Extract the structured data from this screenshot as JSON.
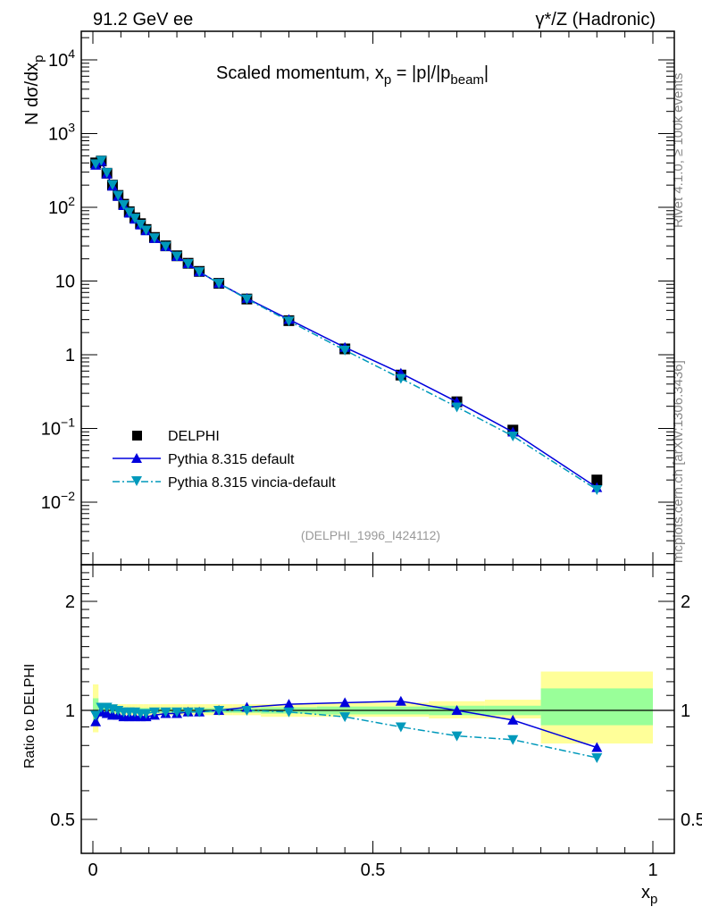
{
  "header": {
    "left": "91.2 GeV ee",
    "right": "γ*/Z (Hadronic)"
  },
  "side": {
    "rivet": "Rivet 4.1.0, ≥ 100k events",
    "mcplots": "mcplots.cern.ch [arXiv:1306.3436]"
  },
  "chart_data": [
    {
      "type": "scatter",
      "title": "Scaled momentum, x_p = |p|/|p_beam|",
      "title_parts": {
        "a": "Scaled momentum, x",
        "b": "p",
        "c": " = |p|/|p",
        "d": "beam",
        "e": "|"
      },
      "ylabel": "N  dσ/dx_p",
      "ylabel_parts": {
        "a": "N  dσ/dx",
        "b": "p"
      },
      "yscale": "log",
      "ylim": [
        0.0014,
        24000
      ],
      "xlim": [
        -0.02,
        1.04
      ],
      "yticks": [
        {
          "v": 10000,
          "b": "10",
          "e": "4"
        },
        {
          "v": 1000,
          "b": "10",
          "e": "3"
        },
        {
          "v": 100,
          "b": "10",
          "e": "2"
        },
        {
          "v": 10,
          "b": "10",
          "e": ""
        },
        {
          "v": 1,
          "b": "1",
          "e": ""
        },
        {
          "v": 0.1,
          "b": "10",
          "e": "−1"
        },
        {
          "v": 0.01,
          "b": "10",
          "e": "−2"
        }
      ],
      "annotation": "(DELPHI_1996_I424112)",
      "legend": {
        "placement": "center-left",
        "entries": [
          "DELPHI",
          "Pythia 8.315 default",
          "Pythia 8.315 vincia-default"
        ]
      },
      "x": [
        0.005,
        0.015,
        0.025,
        0.035,
        0.045,
        0.055,
        0.065,
        0.075,
        0.085,
        0.095,
        0.11,
        0.13,
        0.15,
        0.17,
        0.19,
        0.225,
        0.275,
        0.35,
        0.45,
        0.55,
        0.65,
        0.75,
        0.9
      ],
      "series": [
        {
          "name": "DELPHI",
          "values": [
            400,
            425,
            290,
            200,
            145,
            110,
            87,
            72,
            60,
            50,
            39,
            30,
            22,
            17.4,
            13.5,
            9.3,
            5.7,
            2.9,
            1.2,
            0.53,
            0.23,
            0.095,
            0.02
          ]
        },
        {
          "name": "Pythia 8.315 default",
          "ratio": [
            0.93,
            0.99,
            0.98,
            0.97,
            0.97,
            0.96,
            0.96,
            0.96,
            0.96,
            0.96,
            0.97,
            0.98,
            0.98,
            0.99,
            0.99,
            1.0,
            1.02,
            1.04,
            1.05,
            1.06,
            1.0,
            0.94,
            0.79
          ]
        },
        {
          "name": "Pythia 8.315 vincia-default",
          "ratio": [
            0.97,
            1.02,
            1.02,
            1.01,
            1.0,
            0.99,
            0.99,
            0.99,
            0.98,
            0.98,
            0.99,
            0.99,
            0.99,
            0.99,
            0.99,
            1.0,
            1.0,
            0.99,
            0.96,
            0.9,
            0.85,
            0.83,
            0.74
          ]
        }
      ]
    },
    {
      "type": "scatter",
      "ylabel": "Ratio to DELPHI",
      "yscale": "log",
      "ylim": [
        0.4,
        2.52
      ],
      "yticks": [
        {
          "v": 2,
          "l": "2"
        },
        {
          "v": 1,
          "l": "1"
        },
        {
          "v": 0.5,
          "l": "0.5"
        }
      ],
      "xticks": [
        {
          "v": 0,
          "l": "0"
        },
        {
          "v": 0.5,
          "l": "0.5"
        },
        {
          "v": 1,
          "l": "1"
        }
      ],
      "xlabel_parts": {
        "a": "x",
        "b": "p"
      },
      "bands": {
        "edges": [
          0,
          0.01,
          0.02,
          0.03,
          0.04,
          0.05,
          0.06,
          0.07,
          0.08,
          0.09,
          0.1,
          0.12,
          0.14,
          0.16,
          0.18,
          0.2,
          0.25,
          0.3,
          0.4,
          0.5,
          0.6,
          0.7,
          0.8,
          1.0
        ],
        "total": [
          [
            0.87,
            1.18
          ],
          [
            0.96,
            1.05
          ],
          [
            0.96,
            1.05
          ],
          [
            0.96,
            1.04
          ],
          [
            0.97,
            1.04
          ],
          [
            0.97,
            1.04
          ],
          [
            0.97,
            1.04
          ],
          [
            0.97,
            1.04
          ],
          [
            0.97,
            1.04
          ],
          [
            0.97,
            1.04
          ],
          [
            0.97,
            1.04
          ],
          [
            0.97,
            1.04
          ],
          [
            0.97,
            1.04
          ],
          [
            0.97,
            1.04
          ],
          [
            0.97,
            1.04
          ],
          [
            0.97,
            1.04
          ],
          [
            0.97,
            1.04
          ],
          [
            0.96,
            1.04
          ],
          [
            0.96,
            1.05
          ],
          [
            0.96,
            1.05
          ],
          [
            0.95,
            1.06
          ],
          [
            0.95,
            1.07
          ],
          [
            0.81,
            1.28
          ]
        ],
        "stat": [
          [
            0.93,
            1.08
          ],
          [
            0.98,
            1.02
          ],
          [
            0.98,
            1.02
          ],
          [
            0.98,
            1.02
          ],
          [
            0.985,
            1.015
          ],
          [
            0.985,
            1.015
          ],
          [
            0.985,
            1.015
          ],
          [
            0.985,
            1.015
          ],
          [
            0.985,
            1.015
          ],
          [
            0.985,
            1.015
          ],
          [
            0.985,
            1.015
          ],
          [
            0.985,
            1.015
          ],
          [
            0.985,
            1.015
          ],
          [
            0.985,
            1.015
          ],
          [
            0.985,
            1.015
          ],
          [
            0.985,
            1.015
          ],
          [
            0.985,
            1.015
          ],
          [
            0.98,
            1.02
          ],
          [
            0.975,
            1.025
          ],
          [
            0.975,
            1.025
          ],
          [
            0.97,
            1.03
          ],
          [
            0.97,
            1.03
          ],
          [
            0.91,
            1.15
          ]
        ]
      }
    }
  ],
  "colors": {
    "data": "#000000",
    "default": "#0000dd",
    "vincia": "#0099bb",
    "yellow": "#ffff99",
    "green": "#99ff99"
  }
}
